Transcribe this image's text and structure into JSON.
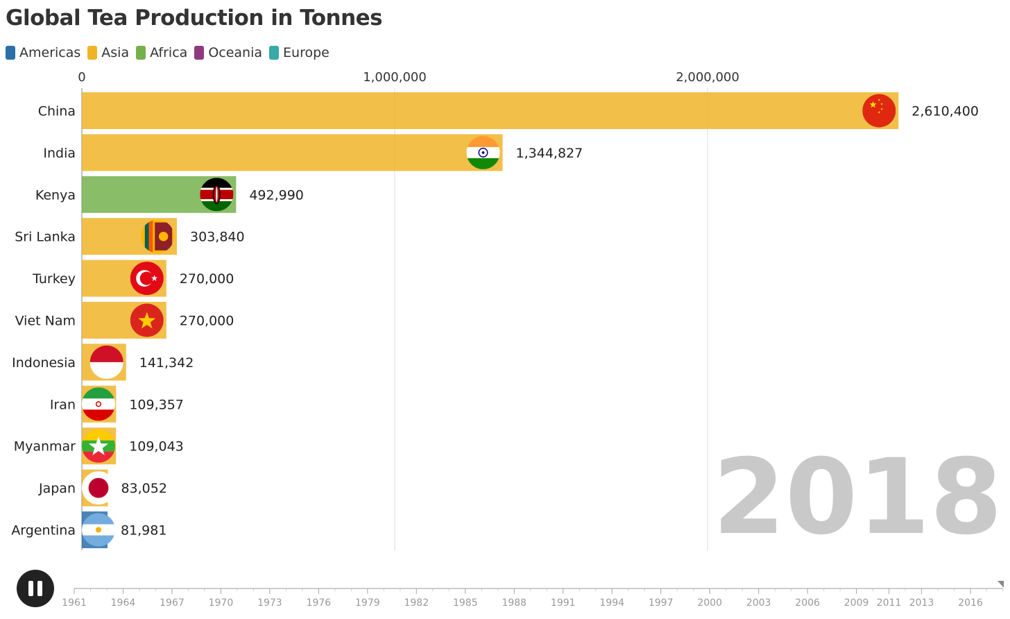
{
  "title": "Global Tea Production in Tonnes",
  "legend": [
    {
      "label": "Americas",
      "color": "#2a6fa8"
    },
    {
      "label": "Asia",
      "color": "#f0b429"
    },
    {
      "label": "Africa",
      "color": "#74b14c"
    },
    {
      "label": "Oceania",
      "color": "#8e3a80"
    },
    {
      "label": "Europe",
      "color": "#35aaa6"
    }
  ],
  "year": "2018",
  "chart_data": {
    "type": "bar",
    "orientation": "horizontal",
    "title": "Global Tea Production in Tonnes",
    "xlim": [
      0,
      2700000
    ],
    "xticks": [
      0,
      1000000,
      2000000
    ],
    "xtick_labels": [
      "0",
      "1,000,000",
      "2,000,000"
    ],
    "grid": true,
    "legend_placement": "top-left",
    "categories": [
      "China",
      "India",
      "Kenya",
      "Sri Lanka",
      "Turkey",
      "Viet Nam",
      "Indonesia",
      "Iran",
      "Myanmar",
      "Japan",
      "Argentina"
    ],
    "values": [
      2610400,
      1344827,
      492990,
      303840,
      270000,
      270000,
      141342,
      109357,
      109043,
      83052,
      81981
    ],
    "value_labels": [
      "2,610,400",
      "1,344,827",
      "492,990",
      "303,840",
      "270,000",
      "270,000",
      "141,342",
      "109,357",
      "109,043",
      "83,052",
      "81,981"
    ],
    "regions": [
      "Asia",
      "Asia",
      "Africa",
      "Asia",
      "Asia",
      "Asia",
      "Asia",
      "Asia",
      "Asia",
      "Asia",
      "Americas"
    ],
    "flag_icons": [
      "china-flag-icon",
      "india-flag-icon",
      "kenya-flag-icon",
      "sri-lanka-flag-icon",
      "turkey-flag-icon",
      "viet-nam-flag-icon",
      "indonesia-flag-icon",
      "iran-flag-icon",
      "myanmar-flag-icon",
      "japan-flag-icon",
      "argentina-flag-icon"
    ],
    "region_colors": {
      "Asia": "#f0b429",
      "Africa": "#74b14c",
      "Americas": "#2a6fa8"
    }
  },
  "timeline": {
    "labels": [
      "1961",
      "1964",
      "1967",
      "1970",
      "1973",
      "1976",
      "1979",
      "1982",
      "1985",
      "1988",
      "1991",
      "1994",
      "1997",
      "2000",
      "2003",
      "2006",
      "2009",
      "2011",
      "2013",
      "2016"
    ],
    "years": [
      1961,
      1964,
      1967,
      1970,
      1973,
      1976,
      1979,
      1982,
      1985,
      1988,
      1991,
      1994,
      1997,
      2000,
      2003,
      2006,
      2009,
      2011,
      2013,
      2016
    ],
    "range": [
      1961,
      2018
    ],
    "current": 2018
  }
}
